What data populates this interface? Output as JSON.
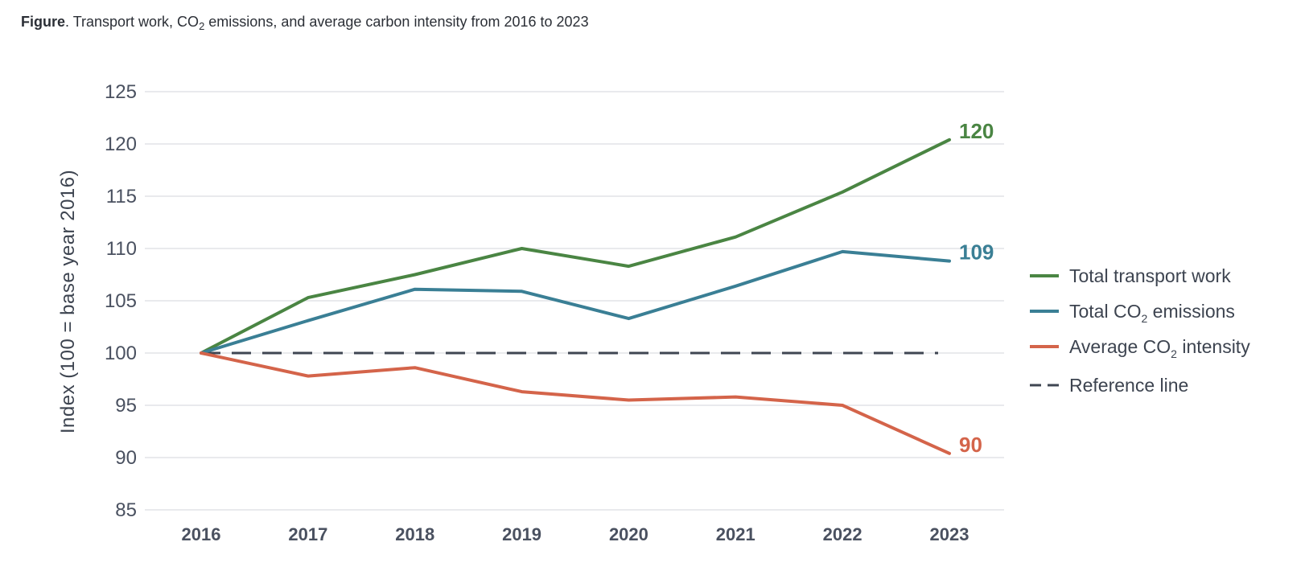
{
  "caption": {
    "bold": "Figure",
    "pre": ". Transport work, CO",
    "sub": "2",
    "post": " emissions, and average carbon intensity from 2016 to 2023"
  },
  "chart_data": {
    "type": "line",
    "title": "Figure. Transport work, CO2 emissions, and average carbon intensity from 2016 to 2023",
    "ylabel": "Index (100 = base year 2016)",
    "xlabel": "",
    "ylim": [
      85,
      125
    ],
    "yticks": [
      85,
      90,
      95,
      100,
      105,
      110,
      115,
      120,
      125
    ],
    "grid": "horizontal",
    "legend_position": "right",
    "categories": [
      "2016",
      "2017",
      "2018",
      "2019",
      "2020",
      "2021",
      "2022",
      "2023"
    ],
    "series": [
      {
        "name": "Total transport work",
        "legend_pre": "Total transport work",
        "legend_sub": "",
        "legend_post": "",
        "color": "#4a8543",
        "style": "solid",
        "values": [
          100,
          105.3,
          107.5,
          110,
          108.3,
          111.1,
          115.4,
          120.4
        ],
        "end_label": "120"
      },
      {
        "name": "Total CO2 emissions",
        "legend_pre": "Total CO",
        "legend_sub": "2",
        "legend_post": " emissions",
        "color": "#3a7f95",
        "style": "solid",
        "values": [
          100,
          103.1,
          106.1,
          105.9,
          103.3,
          106.4,
          109.7,
          108.8
        ],
        "end_label": "109"
      },
      {
        "name": "Average CO2 intensity",
        "legend_pre": "Average CO",
        "legend_sub": "2",
        "legend_post": " intensity",
        "color": "#d4644a",
        "style": "solid",
        "values": [
          100,
          97.8,
          98.6,
          96.3,
          95.5,
          95.8,
          95,
          90.4
        ],
        "end_label": "90"
      },
      {
        "name": "Reference line",
        "legend_pre": "Reference line",
        "legend_sub": "",
        "legend_post": "",
        "color": "#3f4652",
        "style": "dashed",
        "values": [
          100,
          100,
          100,
          100,
          100,
          100,
          100,
          100
        ],
        "end_label": ""
      }
    ]
  }
}
